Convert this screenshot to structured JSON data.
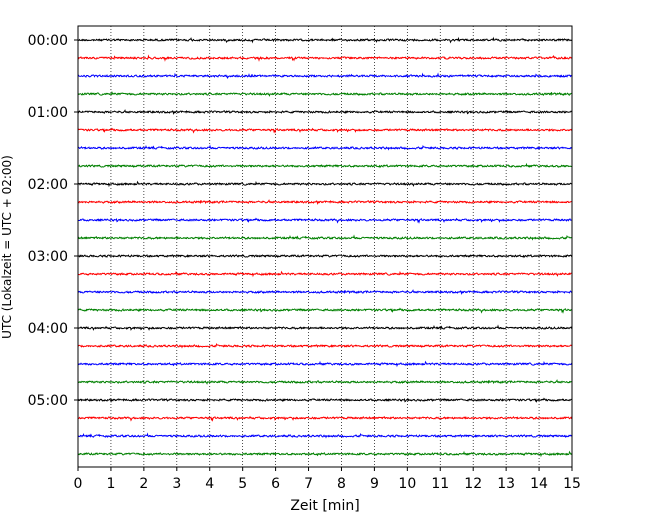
{
  "chart_data": {
    "type": "line",
    "title": "",
    "xlabel": "Zeit  [min]",
    "ylabel": "UTC (Lokalzeit = UTC + 02:00)",
    "xlim": [
      0,
      15
    ],
    "x_ticks": [
      0,
      1,
      2,
      3,
      4,
      5,
      6,
      7,
      8,
      9,
      10,
      11,
      12,
      13,
      14,
      15
    ],
    "x_tick_labels": [
      "0",
      "1",
      "2",
      "3",
      "4",
      "5",
      "6",
      "7",
      "8",
      "9",
      "10",
      "11",
      "12",
      "13",
      "14",
      "15"
    ],
    "y_tick_labels": [
      "00:00",
      "01:00",
      "02:00",
      "03:00",
      "04:00",
      "05:00"
    ],
    "grid": "vertical dotted",
    "legend": "none",
    "trace_interval_min": 15,
    "trace_count": 24,
    "trace_colors": [
      "#000000",
      "#ff0000",
      "#0000ff",
      "#008000"
    ]
  }
}
